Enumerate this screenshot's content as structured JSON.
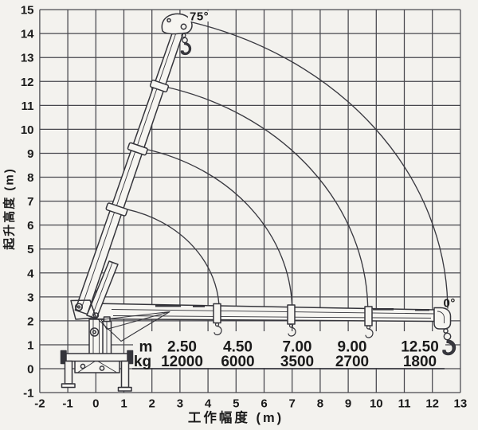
{
  "axes": {
    "x": {
      "title": "工作幅度 (m)",
      "ticks": [
        "-2",
        "-1",
        "0",
        "1",
        "2",
        "3",
        "4",
        "5",
        "6",
        "7",
        "8",
        "9",
        "10",
        "11",
        "12",
        "13"
      ]
    },
    "y": {
      "title": "起升高度 (m)",
      "ticks": [
        "15",
        "14",
        "13",
        "12",
        "11",
        "10",
        "9",
        "8",
        "7",
        "6",
        "5",
        "4",
        "3",
        "2",
        "1",
        "0",
        "-1"
      ]
    }
  },
  "annotations": {
    "boom_max_angle": "75°",
    "boom_min_angle": "0°"
  },
  "load_table": {
    "radius_label": "m",
    "capacity_label": "kg",
    "radius_values": [
      "2.50",
      "4.50",
      "7.00",
      "9.00",
      "12.50"
    ],
    "capacity_values": [
      "12000",
      "6000",
      "3500",
      "2700",
      "1800"
    ]
  },
  "colors": {
    "background": "#f3f2ee",
    "grid_line": "#47474d",
    "drawing_line": "#35353b",
    "text": "#1a1a1a"
  },
  "chart_data": {
    "type": "line",
    "title": "",
    "xlabel": "工作幅度 (m)",
    "ylabel": "起升高度 (m)",
    "xlim": [
      -2,
      13
    ],
    "ylim": [
      -1,
      15
    ],
    "grid": true,
    "x_ticks": [
      -2,
      -1,
      0,
      1,
      2,
      3,
      4,
      5,
      6,
      7,
      8,
      9,
      10,
      11,
      12,
      13
    ],
    "y_ticks": [
      -1,
      0,
      1,
      2,
      3,
      4,
      5,
      6,
      7,
      8,
      9,
      10,
      11,
      12,
      13,
      14,
      15
    ],
    "boom_pivot": {
      "x": 0,
      "y": 2.4
    },
    "boom_angle_max_deg": 75,
    "boom_angle_min_deg": 0,
    "envelope_arcs_radius_m": [
      4.4,
      7.0,
      9.7,
      12.55
    ],
    "load_capacity_table": {
      "radius_m": [
        2.5,
        4.5,
        7.0,
        9.0,
        12.5
      ],
      "capacity_kg": [
        12000,
        6000,
        3500,
        2700,
        1800
      ]
    }
  }
}
